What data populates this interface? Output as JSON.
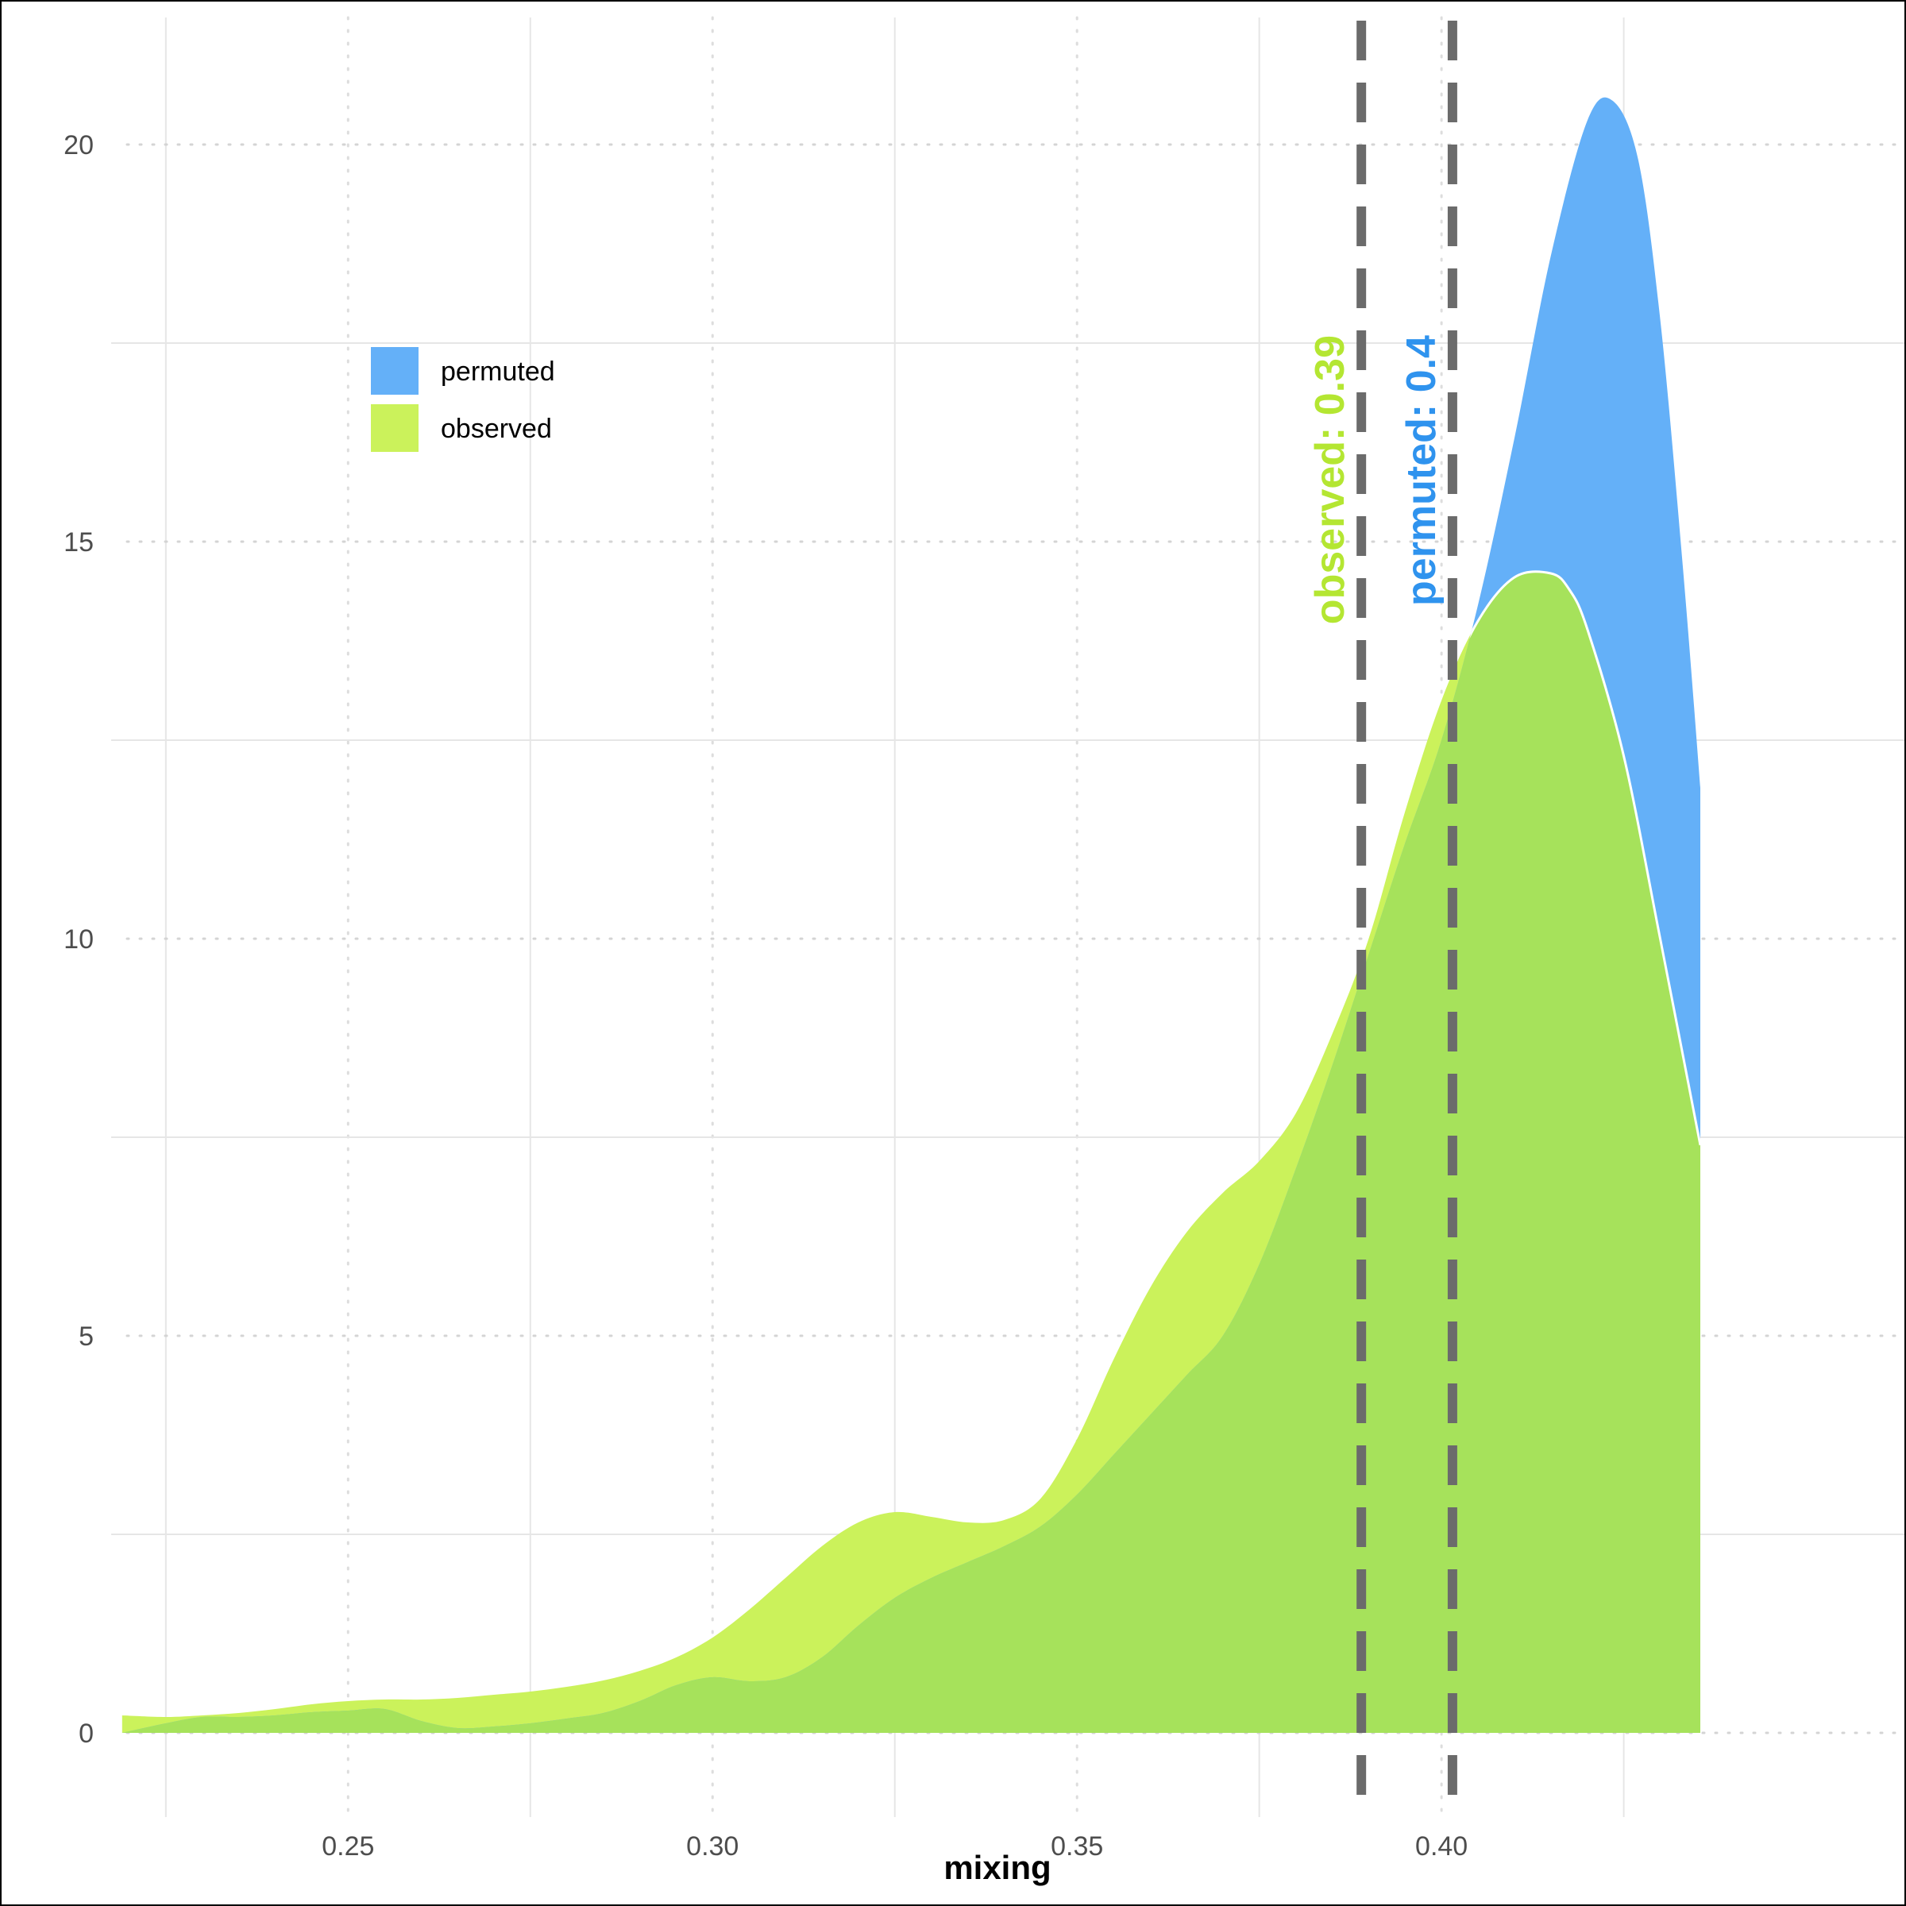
{
  "chart_data": {
    "type": "area",
    "title": "",
    "xlabel": "mixing",
    "ylabel": "",
    "xlim": [
      0.2175,
      0.4635
    ],
    "ylim": [
      -1.06,
      21.6
    ],
    "x_ticks": [
      0.25,
      0.3,
      0.35,
      0.4
    ],
    "x_tick_labels": [
      "0.25",
      "0.30",
      "0.35",
      "0.40"
    ],
    "x_minor_ticks": [
      0.225,
      0.275,
      0.325,
      0.375,
      0.425
    ],
    "y_ticks": [
      0,
      5,
      10,
      15,
      20
    ],
    "y_tick_labels": [
      "0",
      "5",
      "10",
      "15",
      "20"
    ],
    "y_minor_ticks": [
      2.5,
      7.5,
      12.5,
      17.5
    ],
    "grid": true,
    "legend": {
      "position": "top-left",
      "entries": [
        {
          "label": "permuted",
          "color": "#64b0f8"
        },
        {
          "label": "observed",
          "color": "#cbf25b"
        }
      ]
    },
    "overlap_color": "#a6e25b",
    "series": [
      {
        "name": "permuted",
        "color": "#64b0f8",
        "x": [
          0.219,
          0.225,
          0.23,
          0.235,
          0.24,
          0.245,
          0.25,
          0.255,
          0.26,
          0.265,
          0.27,
          0.275,
          0.28,
          0.285,
          0.29,
          0.295,
          0.3,
          0.305,
          0.31,
          0.315,
          0.32,
          0.325,
          0.33,
          0.335,
          0.34,
          0.345,
          0.35,
          0.355,
          0.36,
          0.365,
          0.37,
          0.375,
          0.38,
          0.385,
          0.39,
          0.395,
          0.4,
          0.405,
          0.41,
          0.415,
          0.42,
          0.4235,
          0.427,
          0.43,
          0.433,
          0.4355
        ],
        "y": [
          0.0,
          0.12,
          0.2,
          0.2,
          0.22,
          0.26,
          0.28,
          0.3,
          0.15,
          0.06,
          0.08,
          0.12,
          0.18,
          0.25,
          0.4,
          0.6,
          0.7,
          0.65,
          0.7,
          0.95,
          1.35,
          1.7,
          1.95,
          2.15,
          2.35,
          2.6,
          3.0,
          3.5,
          4.0,
          4.5,
          5.0,
          5.9,
          7.1,
          8.4,
          9.8,
          11.2,
          12.5,
          14.2,
          16.3,
          18.6,
          20.3,
          20.55,
          19.8,
          17.8,
          14.8,
          11.9
        ]
      },
      {
        "name": "observed",
        "color": "#cbf25b",
        "x": [
          0.219,
          0.225,
          0.23,
          0.235,
          0.24,
          0.245,
          0.25,
          0.255,
          0.26,
          0.265,
          0.27,
          0.275,
          0.28,
          0.285,
          0.29,
          0.295,
          0.3,
          0.305,
          0.31,
          0.315,
          0.32,
          0.325,
          0.33,
          0.335,
          0.34,
          0.345,
          0.35,
          0.355,
          0.36,
          0.365,
          0.37,
          0.375,
          0.38,
          0.385,
          0.39,
          0.395,
          0.4,
          0.405,
          0.41,
          0.415,
          0.4175,
          0.42,
          0.425,
          0.43,
          0.4355
        ],
        "y": [
          0.22,
          0.2,
          0.22,
          0.25,
          0.3,
          0.36,
          0.4,
          0.42,
          0.42,
          0.44,
          0.48,
          0.52,
          0.58,
          0.66,
          0.78,
          0.95,
          1.2,
          1.55,
          1.95,
          2.35,
          2.65,
          2.78,
          2.72,
          2.65,
          2.68,
          2.95,
          3.7,
          4.7,
          5.6,
          6.3,
          6.8,
          7.2,
          7.8,
          8.8,
          10.0,
          11.6,
          13.0,
          14.0,
          14.55,
          14.6,
          14.4,
          13.9,
          12.3,
          10.0,
          7.4
        ]
      }
    ],
    "vlines": [
      {
        "x": 0.389,
        "label": "observed: 0.39",
        "color": "#b4e632",
        "line_color": "#6b6b6b",
        "style": "dashed"
      },
      {
        "x": 0.4015,
        "label": "permuted: 0.4",
        "color": "#2f93ee",
        "line_color": "#6b6b6b",
        "style": "dashed"
      }
    ],
    "annotation_label_y": 17.6
  }
}
